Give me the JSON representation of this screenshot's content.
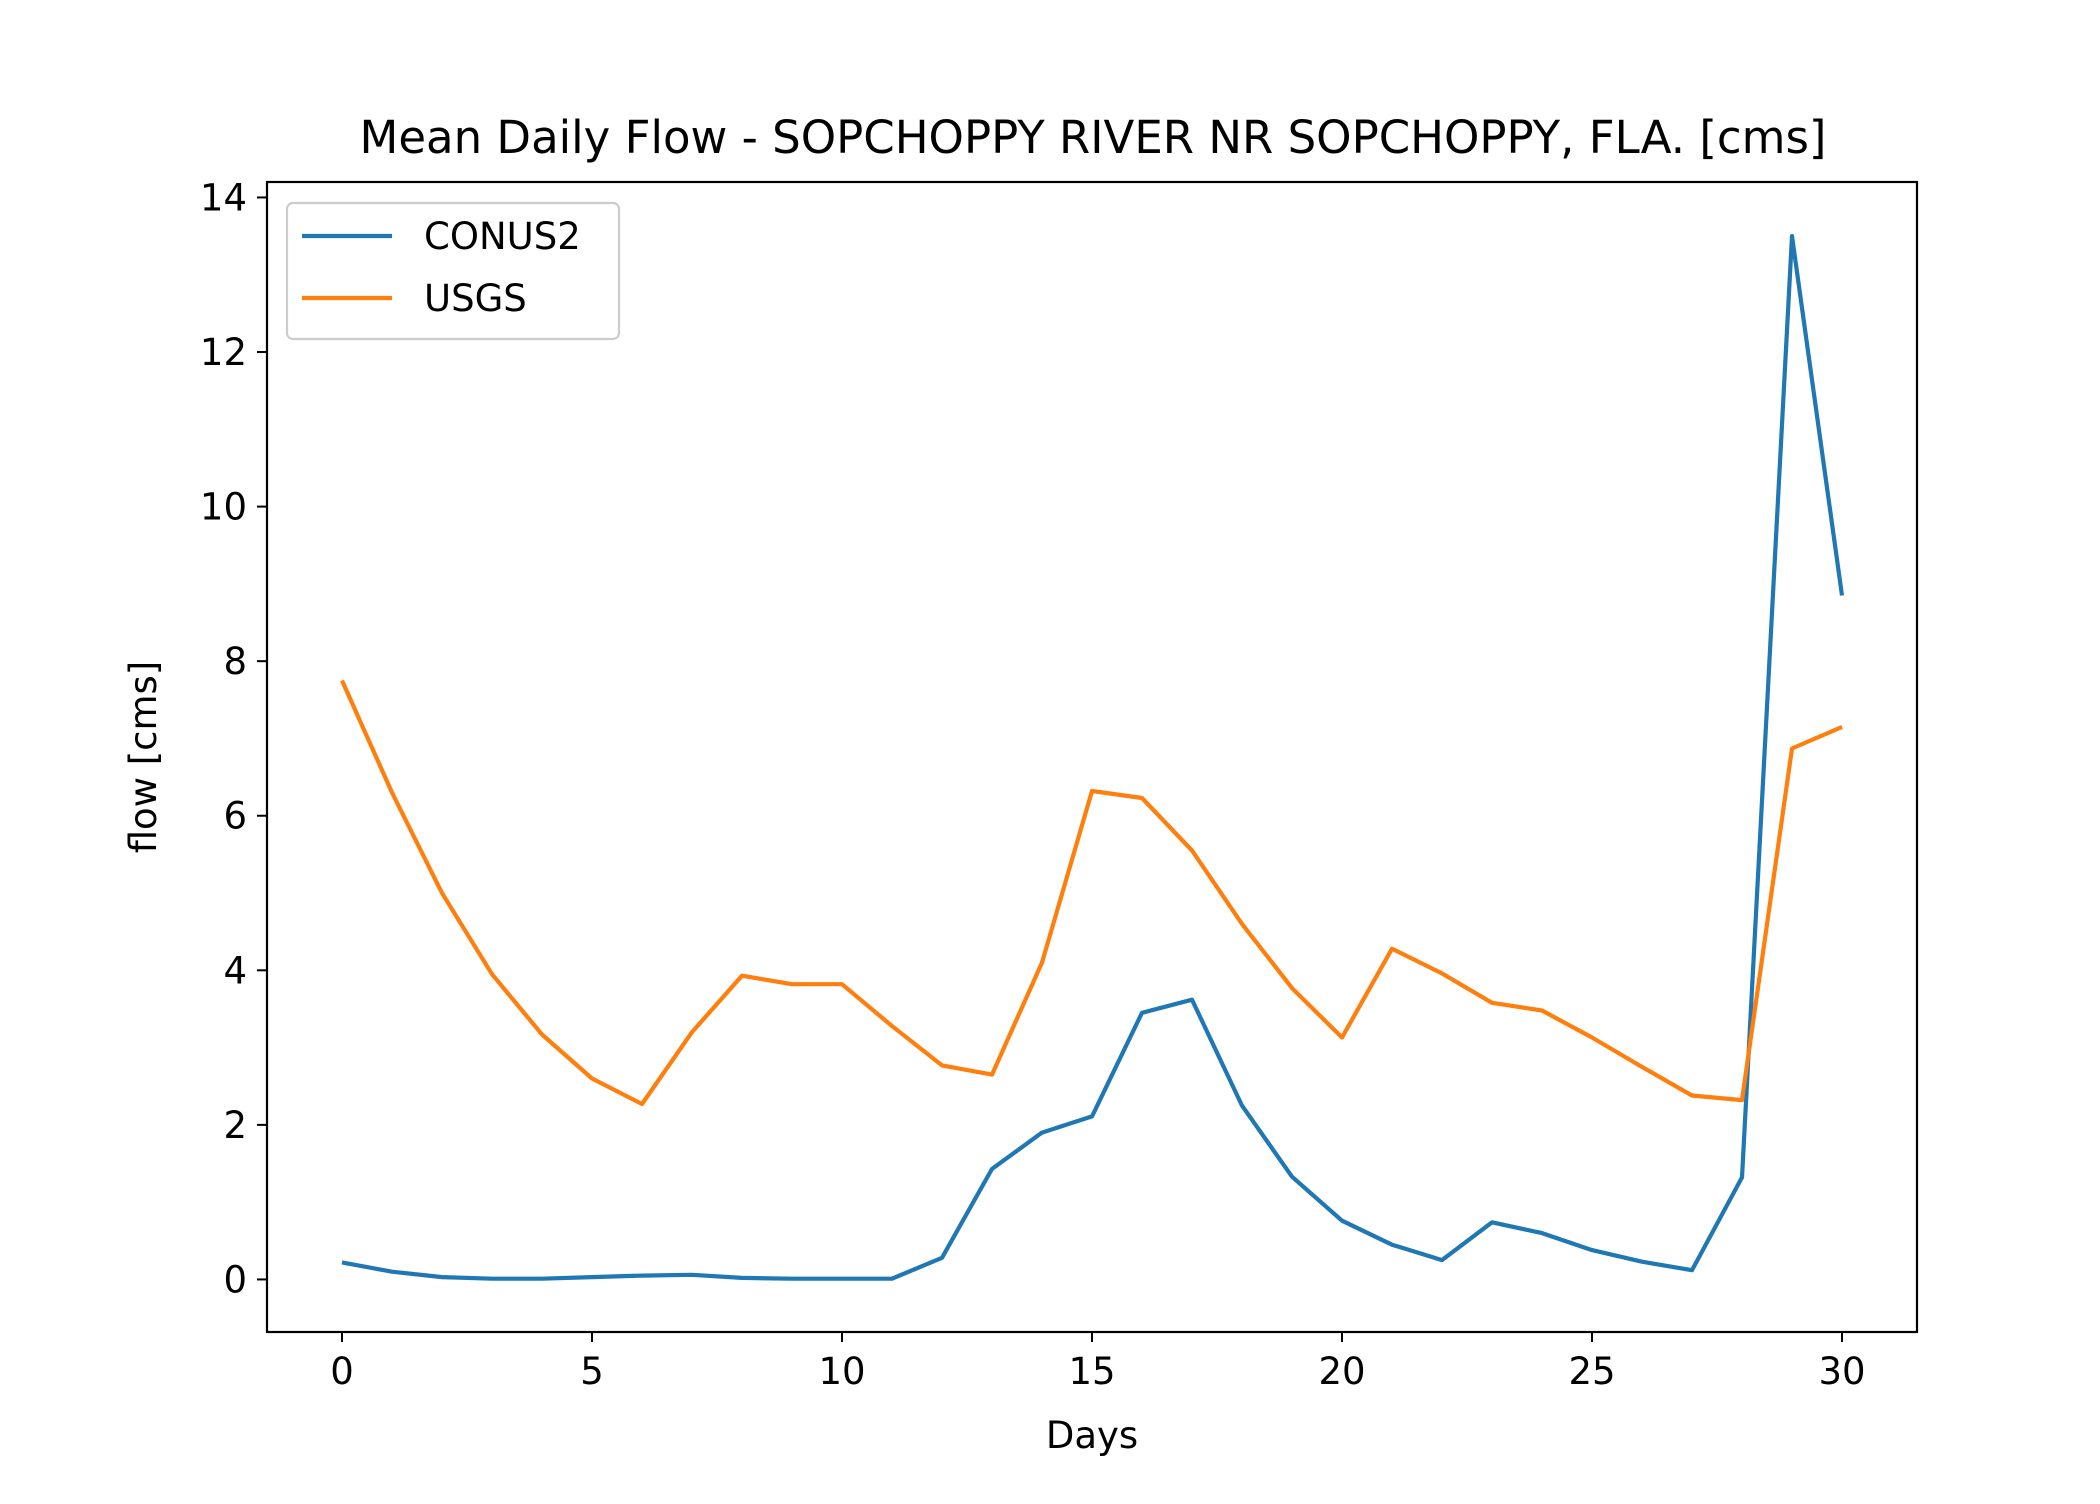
{
  "chart_data": {
    "type": "line",
    "title": "Mean Daily Flow - SOPCHOPPY RIVER NR SOPCHOPPY, FLA. [cms]",
    "xlabel": "Days",
    "ylabel": "flow [cms]",
    "xlim": [
      -1.5,
      31.5
    ],
    "ylim": [
      -0.68,
      14.2
    ],
    "xticks": [
      0,
      5,
      10,
      15,
      20,
      25,
      30
    ],
    "yticks": [
      0,
      2,
      4,
      6,
      8,
      10,
      12,
      14
    ],
    "grid": false,
    "legend_position": "upper-left",
    "x": [
      0,
      1,
      2,
      3,
      4,
      5,
      6,
      7,
      8,
      9,
      10,
      11,
      12,
      13,
      14,
      15,
      16,
      17,
      18,
      19,
      20,
      21,
      22,
      23,
      24,
      25,
      26,
      27,
      28,
      29,
      30
    ],
    "series": [
      {
        "name": "CONUS2",
        "color": "#1f77b4",
        "values": [
          0.22,
          0.1,
          0.03,
          0.01,
          0.01,
          0.03,
          0.05,
          0.06,
          0.02,
          0.01,
          0.01,
          0.01,
          0.28,
          1.43,
          1.9,
          2.11,
          3.45,
          3.62,
          2.25,
          1.33,
          0.76,
          0.45,
          0.25,
          0.74,
          0.6,
          0.38,
          0.23,
          0.12,
          1.32,
          13.5,
          8.85
        ]
      },
      {
        "name": "USGS",
        "color": "#ff7f0e",
        "values": [
          7.75,
          6.3,
          5.0,
          3.95,
          3.17,
          2.6,
          2.27,
          3.2,
          3.93,
          3.82,
          3.82,
          3.28,
          2.77,
          2.65,
          4.1,
          6.32,
          6.23,
          5.55,
          4.6,
          3.77,
          3.13,
          4.28,
          3.96,
          3.58,
          3.48,
          3.13,
          2.75,
          2.38,
          2.32,
          6.87,
          7.15
        ]
      }
    ]
  }
}
